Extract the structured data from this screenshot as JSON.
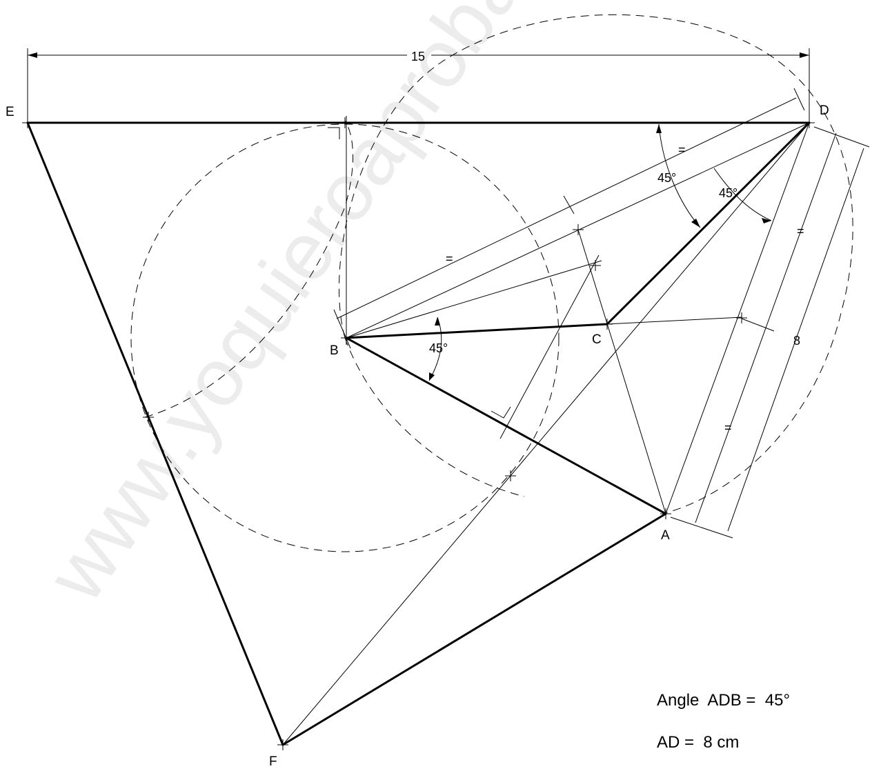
{
  "watermark": "www.yoquieroaprobar.es",
  "points": {
    "A": "A",
    "B": "B",
    "C": "C",
    "D": "D",
    "E": "E",
    "F": "F"
  },
  "dimensions": {
    "ed": "15",
    "ad": "8",
    "angle_edb": "45°",
    "angle_bda": "45°",
    "angle_cba": "45°",
    "equal_mark": "="
  },
  "notes": {
    "angle": "Angle  ADB =  45°",
    "length": "AD =  8 cm"
  }
}
